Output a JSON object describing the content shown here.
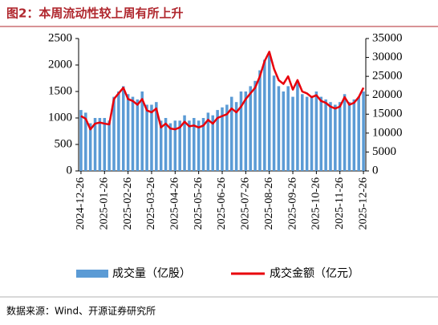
{
  "chart_data": {
    "type": "bar_line",
    "title": "图2：本周流动性较上周有所上升",
    "source": "数据来源：Wind、开源证券研究所",
    "categories": [
      "2024-12-26",
      null,
      null,
      null,
      null,
      "2025-01-26",
      null,
      null,
      null,
      null,
      "2025-02-26",
      null,
      null,
      null,
      null,
      "2025-03-26",
      null,
      null,
      null,
      null,
      "2025-04-26",
      null,
      null,
      null,
      null,
      "2025-05-26",
      null,
      null,
      null,
      null,
      "2025-06-26",
      null,
      null,
      null,
      null,
      "2025-07-26",
      null,
      null,
      null,
      null,
      "2025-08-26",
      null,
      null,
      null,
      null,
      "2025-09-26",
      null,
      null,
      null,
      null,
      "2025-10-26",
      null,
      null,
      null,
      null,
      "2025-11-26",
      null,
      null,
      null,
      null,
      "2025-12-26"
    ],
    "series": [
      {
        "name": "成交量（亿股）",
        "color": "#5b9bd5",
        "values": [
          1150,
          1100,
          900,
          1000,
          1000,
          1000,
          950,
          1400,
          1500,
          1600,
          1450,
          1400,
          1350,
          1500,
          1250,
          1250,
          1300,
          950,
          1000,
          900,
          950,
          950,
          1050,
          950,
          1000,
          950,
          1000,
          1100,
          1050,
          1150,
          1200,
          1250,
          1400,
          1300,
          1500,
          1500,
          1600,
          1700,
          1900,
          2100,
          2200,
          1800,
          1600,
          1500,
          1600,
          1400,
          1700,
          1450,
          1400,
          1400,
          1500,
          1400,
          1350,
          1300,
          1250,
          1300,
          1450,
          1300,
          1350,
          1400,
          1500
        ]
      },
      {
        "name": "成交金额（亿元）",
        "color": "#e8000b",
        "axis": "y2",
        "values": [
          14500,
          13800,
          11000,
          12500,
          12800,
          12500,
          12300,
          19000,
          20500,
          22000,
          19000,
          18500,
          17500,
          19000,
          16000,
          15500,
          16500,
          11500,
          12500,
          11200,
          11000,
          11500,
          13000,
          11800,
          12000,
          11500,
          12000,
          13500,
          12500,
          14000,
          14500,
          15000,
          16500,
          15500,
          17000,
          19000,
          20500,
          22000,
          25000,
          29000,
          31500,
          27000,
          24000,
          23000,
          25000,
          21500,
          24000,
          21000,
          20500,
          19500,
          20000,
          18500,
          18000,
          17000,
          16500,
          17000,
          19500,
          17500,
          18000,
          19500,
          22000
        ]
      }
    ],
    "ylim": [
      0,
      2500
    ],
    "yticks": [
      0,
      500,
      1000,
      1500,
      2000,
      2500
    ],
    "y2lim": [
      0,
      35000
    ],
    "y2ticks": [
      0,
      5000,
      10000,
      15000,
      20000,
      25000,
      30000,
      35000
    ]
  }
}
